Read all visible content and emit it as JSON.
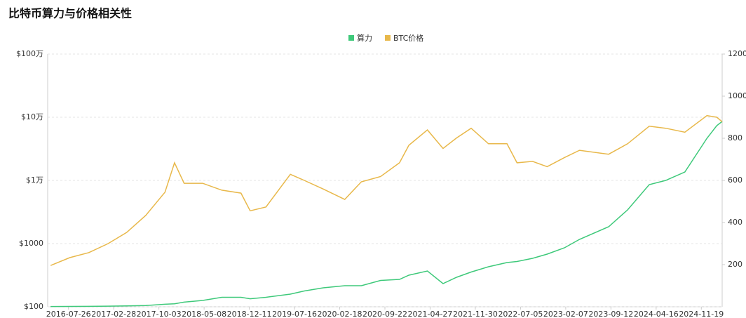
{
  "chart_data": {
    "type": "line",
    "title": "比特币算力与价格相关性",
    "x": [
      "2016-05-01",
      "2016-08-01",
      "2016-11-01",
      "2017-02-01",
      "2017-05-01",
      "2017-08-01",
      "2017-11-01",
      "2017-12-17",
      "2018-02-01",
      "2018-05-01",
      "2018-08-01",
      "2018-11-01",
      "2018-12-15",
      "2019-03-01",
      "2019-06-26",
      "2019-09-01",
      "2019-12-01",
      "2020-03-13",
      "2020-06-01",
      "2020-09-01",
      "2020-12-01",
      "2021-01-15",
      "2021-04-14",
      "2021-06-28",
      "2021-09-01",
      "2021-11-10",
      "2022-02-01",
      "2022-05-01",
      "2022-06-18",
      "2022-09-01",
      "2022-11-10",
      "2023-02-01",
      "2023-04-14",
      "2023-09-01",
      "2023-12-01",
      "2024-03-14",
      "2024-06-01",
      "2024-09-01",
      "2024-12-16",
      "2025-02-01",
      "2025-02-27"
    ],
    "xlim": [
      "2016-04-17",
      "2025-02-27"
    ],
    "xticks": [
      "2016-07-26",
      "2017-02-28",
      "2017-10-03",
      "2018-05-08",
      "2018-12-11",
      "2019-07-16",
      "2020-02-18",
      "2020-09-22",
      "2021-04-27",
      "2021-11-30",
      "2022-07-05",
      "2023-02-07",
      "2023-09-12",
      "2024-04-16",
      "2024-11-19"
    ],
    "series": [
      {
        "name": "算力",
        "color": "#3ec97a",
        "axis": "y2",
        "values": [
          1.5,
          1.8,
          2,
          3,
          4,
          6,
          12,
          14,
          22,
          30,
          45,
          45,
          38,
          45,
          60,
          75,
          90,
          100,
          100,
          125,
          130,
          150,
          170,
          110,
          140,
          165,
          190,
          210,
          215,
          230,
          250,
          280,
          320,
          380,
          460,
          580,
          600,
          640,
          800,
          860,
          880
        ]
      },
      {
        "name": "BTC价格",
        "color": "#e8b84a",
        "values": [
          450,
          600,
          720,
          1000,
          1500,
          2800,
          6500,
          19000,
          9000,
          9000,
          7000,
          6300,
          3300,
          3800,
          12500,
          10000,
          7300,
          5000,
          9500,
          11500,
          19000,
          36000,
          63000,
          32000,
          47000,
          67000,
          38000,
          38000,
          19000,
          20000,
          16500,
          23000,
          30000,
          26000,
          38000,
          72000,
          67000,
          58000,
          106000,
          100000,
          85000
        ]
      }
    ],
    "ylog": true,
    "ylim": [
      100,
      1000000
    ],
    "yticks": [
      {
        "value": 100,
        "label": "$100"
      },
      {
        "value": 1000,
        "label": "$1000"
      },
      {
        "value": 10000,
        "label": "$1万"
      },
      {
        "value": 100000,
        "label": "$10万"
      },
      {
        "value": 1000000,
        "label": "$100万"
      }
    ],
    "y2lim": [
      0,
      1200
    ],
    "y2ticks": [
      200,
      400,
      600,
      800,
      1000,
      1200
    ],
    "grid": true
  }
}
